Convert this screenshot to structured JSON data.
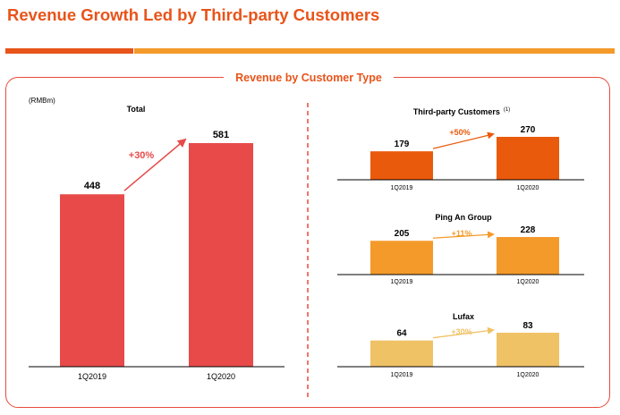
{
  "page": {
    "title": "Revenue Growth Led by Third-party Customers",
    "panel_label": "Revenue by Customer Type",
    "unit": "(RMBm)"
  },
  "colors": {
    "title_orange": "#e8541a",
    "stripe_orange": "#f39a2b",
    "total_red": "#e84a4a",
    "third_party": "#ea5a0c",
    "ping_an": "#f39a2b",
    "lufax": "#f0c266"
  },
  "chart_data": [
    {
      "type": "bar",
      "title": "Total",
      "categories": [
        "1Q2019",
        "1Q2020"
      ],
      "values": [
        448,
        581
      ],
      "growth": "+30%",
      "color": "#e84a4a",
      "growth_color": "#e84a4a"
    },
    {
      "type": "bar",
      "title": "Third-party Customers",
      "title_note": "(1)",
      "categories": [
        "1Q2019",
        "1Q2020"
      ],
      "values": [
        179,
        270
      ],
      "growth": "+50%",
      "color": "#ea5a0c",
      "growth_color": "#ea5a0c"
    },
    {
      "type": "bar",
      "title": "Ping An Group",
      "categories": [
        "1Q2019",
        "1Q2020"
      ],
      "values": [
        205,
        228
      ],
      "growth": "+11%",
      "color": "#f39a2b",
      "growth_color": "#f39a2b"
    },
    {
      "type": "bar",
      "title": "Lufax",
      "categories": [
        "1Q2019",
        "1Q2020"
      ],
      "values": [
        64,
        83
      ],
      "growth": "+30%",
      "color": "#f0c266",
      "growth_color": "#f0c266"
    }
  ]
}
